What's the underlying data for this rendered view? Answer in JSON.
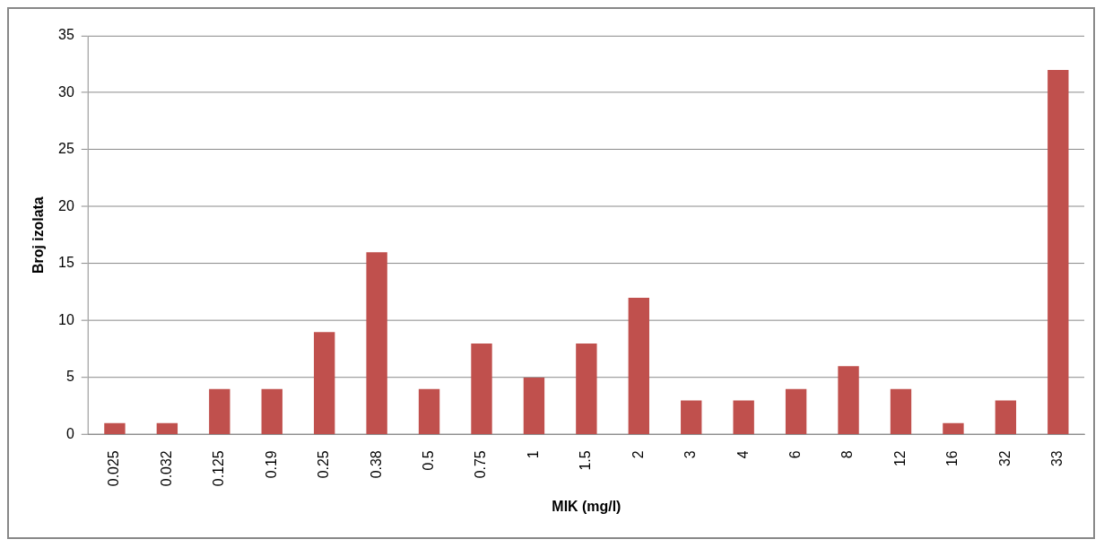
{
  "chart_data": {
    "type": "bar",
    "xlabel": "MIK (mg/l)",
    "ylabel": "Broj izolata",
    "categories": [
      "0.025",
      "0.032",
      "0.125",
      "0.19",
      "0.25",
      "0.38",
      "0.5",
      "0.75",
      "1",
      "1.5",
      "2",
      "3",
      "4",
      "6",
      "8",
      "12",
      "16",
      "32",
      "33"
    ],
    "values": [
      1,
      1,
      4,
      4,
      9,
      16,
      4,
      8,
      5,
      8,
      12,
      3,
      3,
      4,
      6,
      4,
      1,
      3,
      32
    ],
    "color": "#c0504d",
    "ylim": [
      0,
      35
    ],
    "yticks": [
      0,
      5,
      10,
      15,
      20,
      25,
      30,
      35
    ],
    "grid": "y",
    "legend": false
  }
}
